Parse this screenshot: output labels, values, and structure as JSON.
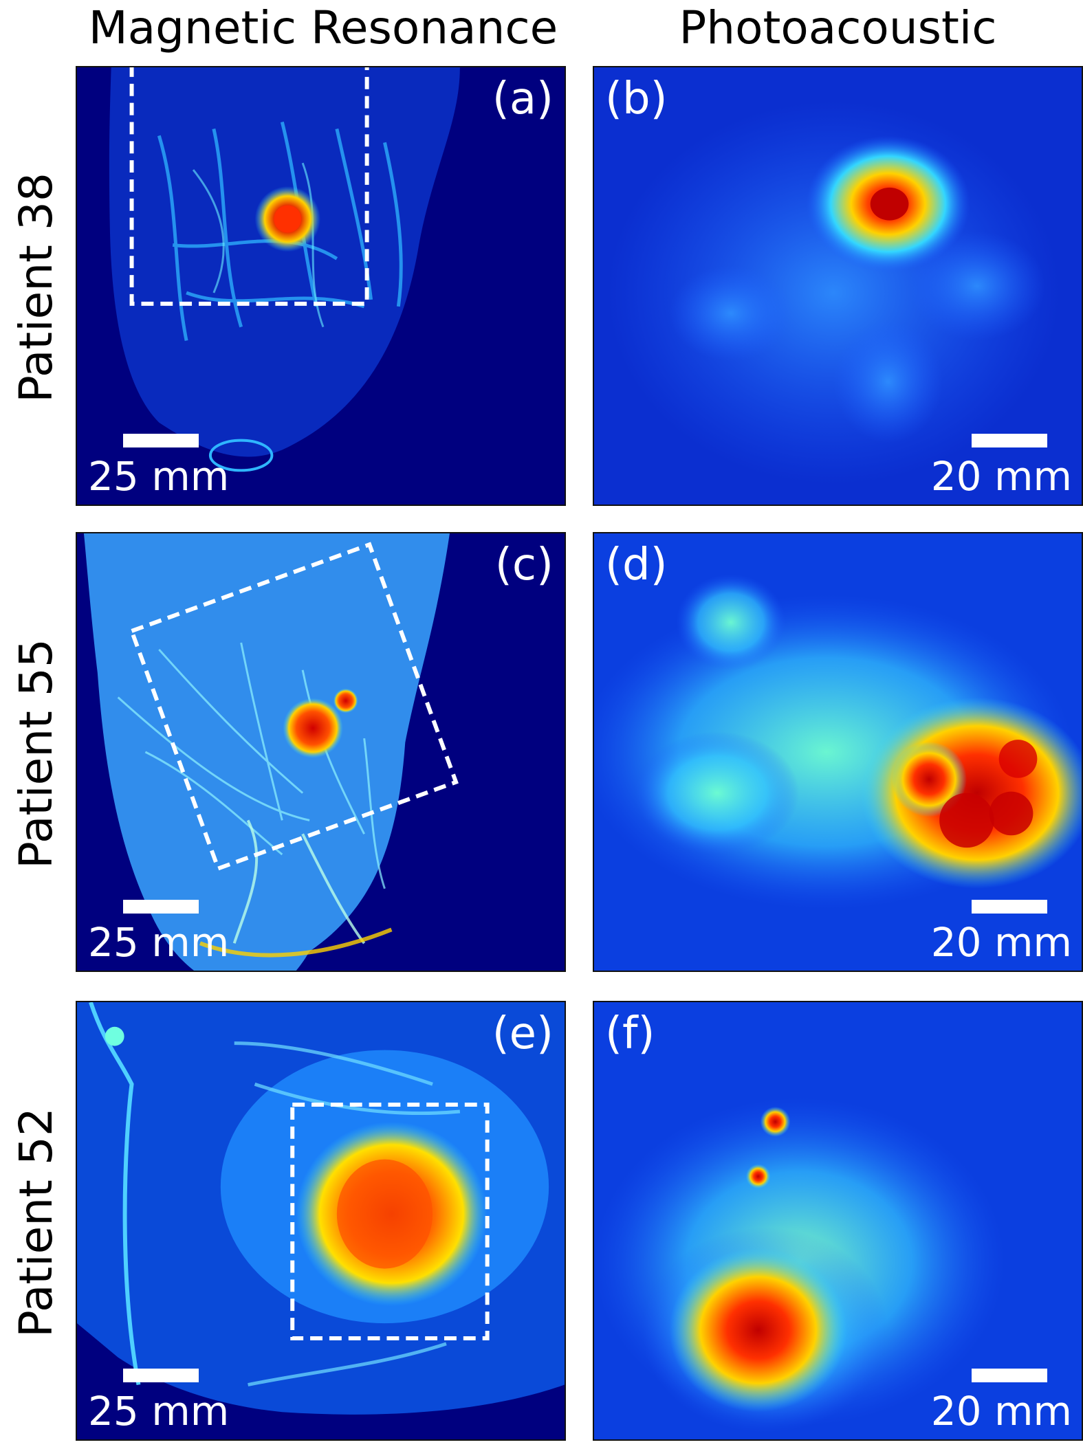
{
  "columns": {
    "left": "Magnetic Resonance",
    "right": "Photoacoustic"
  },
  "rows": [
    {
      "patient": "Patient 38",
      "mr_label": "(a)",
      "pa_label": "(b)"
    },
    {
      "patient": "Patient 55",
      "mr_label": "(c)",
      "pa_label": "(d)"
    },
    {
      "patient": "Patient 52",
      "mr_label": "(e)",
      "pa_label": "(f)"
    }
  ],
  "scale": {
    "mr": "25 mm",
    "pa": "20 mm"
  },
  "colors": {
    "background": "#00007f",
    "low": "#1e5fff",
    "mid": "#33d6ff",
    "high": "#ffd200",
    "peak": "#d80000"
  }
}
